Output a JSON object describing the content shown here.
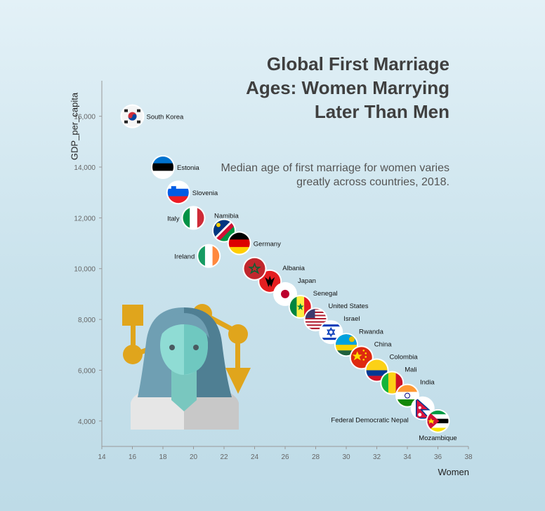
{
  "chart_data": {
    "type": "scatter",
    "title": "Global First Marriage Ages: Women Marrying Later Than Men",
    "subtitle": "Median age of first marriage for women varies greatly across countries, 2018.",
    "xlabel": "Women",
    "ylabel": "GDP_per_capita",
    "xlim": [
      14,
      38
    ],
    "ylim": [
      3000,
      17400
    ],
    "xticks": [
      14,
      16,
      18,
      20,
      22,
      24,
      26,
      28,
      30,
      32,
      34,
      36,
      38
    ],
    "yticks": [
      4000,
      6000,
      8000,
      10000,
      12000,
      14000,
      16000
    ],
    "yticklabels": [
      "4,000",
      "6,000",
      "8,000",
      "10,000",
      "12,000",
      "14,000",
      "16,000"
    ],
    "grid": false,
    "marker": "country-flag",
    "points": [
      {
        "label": "South Korea",
        "x": 16,
        "y": 16000,
        "flag": "south-korea"
      },
      {
        "label": "Estonia",
        "x": 18,
        "y": 14000,
        "flag": "estonia"
      },
      {
        "label": "Slovenia",
        "x": 19,
        "y": 13000,
        "flag": "slovenia"
      },
      {
        "label": "Italy",
        "x": 20,
        "y": 12000,
        "flag": "italy"
      },
      {
        "label": "Namibia",
        "x": 22,
        "y": 11500,
        "flag": "namibia"
      },
      {
        "label": "Germany",
        "x": 23,
        "y": 11000,
        "flag": "germany"
      },
      {
        "label": "Ireland",
        "x": 21,
        "y": 10500,
        "flag": "ireland"
      },
      {
        "label": "Albania",
        "x": 25,
        "y": 9500,
        "flag": "albania"
      },
      {
        "label": "Morocco",
        "x": 24,
        "y": 10000,
        "flag": "morocco"
      },
      {
        "label": "Japan",
        "x": 26,
        "y": 9000,
        "flag": "japan"
      },
      {
        "label": "Senegal",
        "x": 27,
        "y": 8500,
        "flag": "senegal"
      },
      {
        "label": "United States",
        "x": 28,
        "y": 8000,
        "flag": "united-states"
      },
      {
        "label": "Israel",
        "x": 29,
        "y": 7500,
        "flag": "israel"
      },
      {
        "label": "Rwanda",
        "x": 30,
        "y": 7000,
        "flag": "rwanda"
      },
      {
        "label": "China",
        "x": 31,
        "y": 6500,
        "flag": "china"
      },
      {
        "label": "Colombia",
        "x": 32,
        "y": 6000,
        "flag": "colombia"
      },
      {
        "label": "Mali",
        "x": 33,
        "y": 5500,
        "flag": "mali"
      },
      {
        "label": "India",
        "x": 34,
        "y": 5000,
        "flag": "india"
      },
      {
        "label": "Federal Democratic Nepal",
        "x": 35,
        "y": 4500,
        "flag": "nepal"
      },
      {
        "label": "Mozambique",
        "x": 36,
        "y": 4000,
        "flag": "mozambique"
      }
    ]
  }
}
